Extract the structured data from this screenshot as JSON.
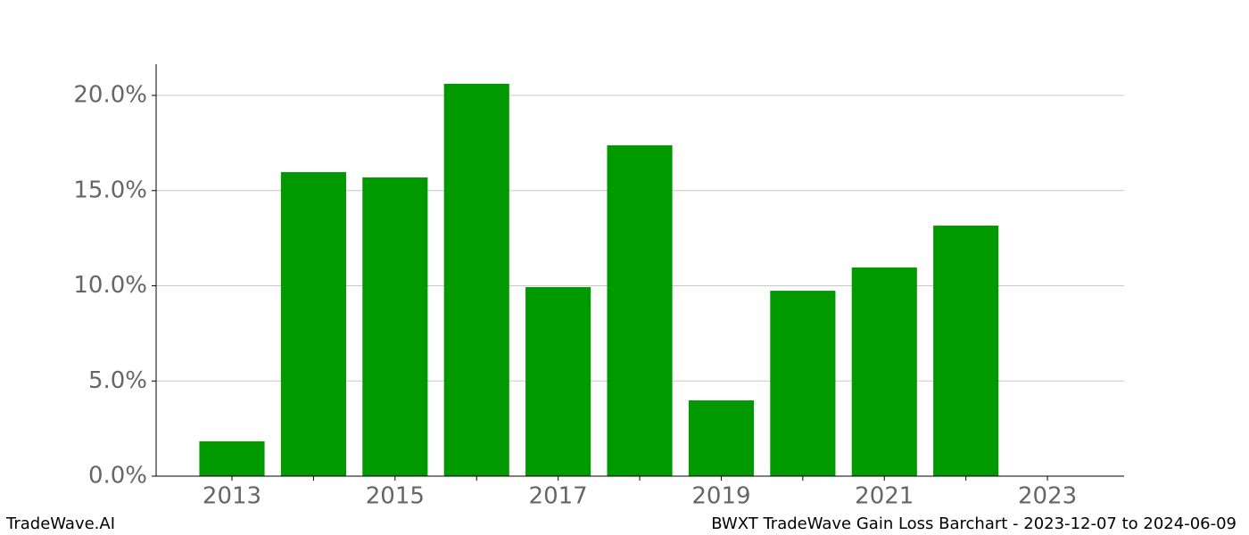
{
  "chart_data": {
    "type": "bar",
    "x": [
      2013,
      2014,
      2015,
      2016,
      2017,
      2018,
      2019,
      2020,
      2021,
      2022
    ],
    "values": [
      1.83,
      15.97,
      15.69,
      20.61,
      9.93,
      17.38,
      3.98,
      9.74,
      10.96,
      13.16
    ],
    "color": "#009900",
    "xlim": [
      2012.07,
      2023.94
    ],
    "xticks": [
      2013,
      2015,
      2017,
      2019,
      2021,
      2023
    ],
    "xminorticks": [
      2014,
      2016,
      2018,
      2020,
      2022
    ],
    "ylim": [
      0,
      21.64
    ],
    "yticks": [
      {
        "value": 0,
        "label": "0.0%"
      },
      {
        "value": 5,
        "label": "5.0%"
      },
      {
        "value": 10,
        "label": "10.0%"
      },
      {
        "value": 15,
        "label": "15.0%"
      },
      {
        "value": 20,
        "label": "20.0%"
      }
    ],
    "grid": true
  },
  "footer": {
    "left": "TradeWave.AI",
    "right": "BWXT TradeWave Gain Loss Barchart - 2023-12-07 to 2024-06-09"
  }
}
